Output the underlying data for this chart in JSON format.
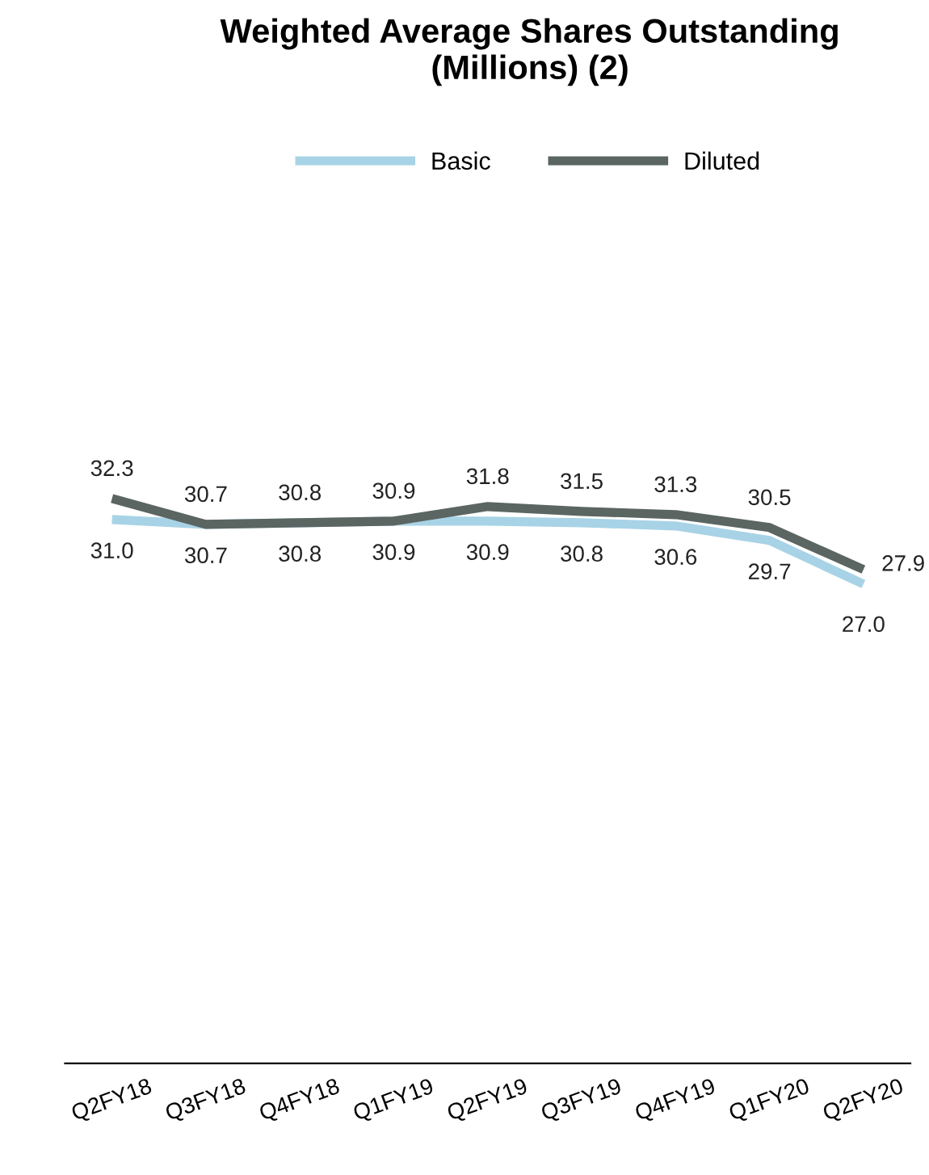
{
  "chart_data": {
    "type": "line",
    "title": "Weighted Average Shares Outstanding\n(Millions) (2)",
    "categories": [
      "Q2FY18",
      "Q3FY18",
      "Q4FY18",
      "Q1FY19",
      "Q2FY19",
      "Q3FY19",
      "Q4FY19",
      "Q1FY20",
      "Q2FY20"
    ],
    "series": [
      {
        "name": "Basic",
        "color": "#a8d3e6",
        "values": [
          31.0,
          30.7,
          30.8,
          30.9,
          30.9,
          30.8,
          30.6,
          29.7,
          27.0
        ],
        "value_labels": [
          "31.0",
          "30.7",
          "30.8",
          "30.9",
          "30.9",
          "30.8",
          "30.6",
          "29.7",
          "27.0"
        ]
      },
      {
        "name": "Diluted",
        "color": "#5b6562",
        "values": [
          32.3,
          30.7,
          30.8,
          30.9,
          31.8,
          31.5,
          31.3,
          30.5,
          27.9
        ],
        "value_labels": [
          "32.3",
          "30.7",
          "30.8",
          "30.9",
          "31.8",
          "31.5",
          "31.3",
          "30.5",
          "27.9"
        ]
      }
    ],
    "legend": "top",
    "tick_labels": "x",
    "marker": "none",
    "line_style": "solid"
  }
}
